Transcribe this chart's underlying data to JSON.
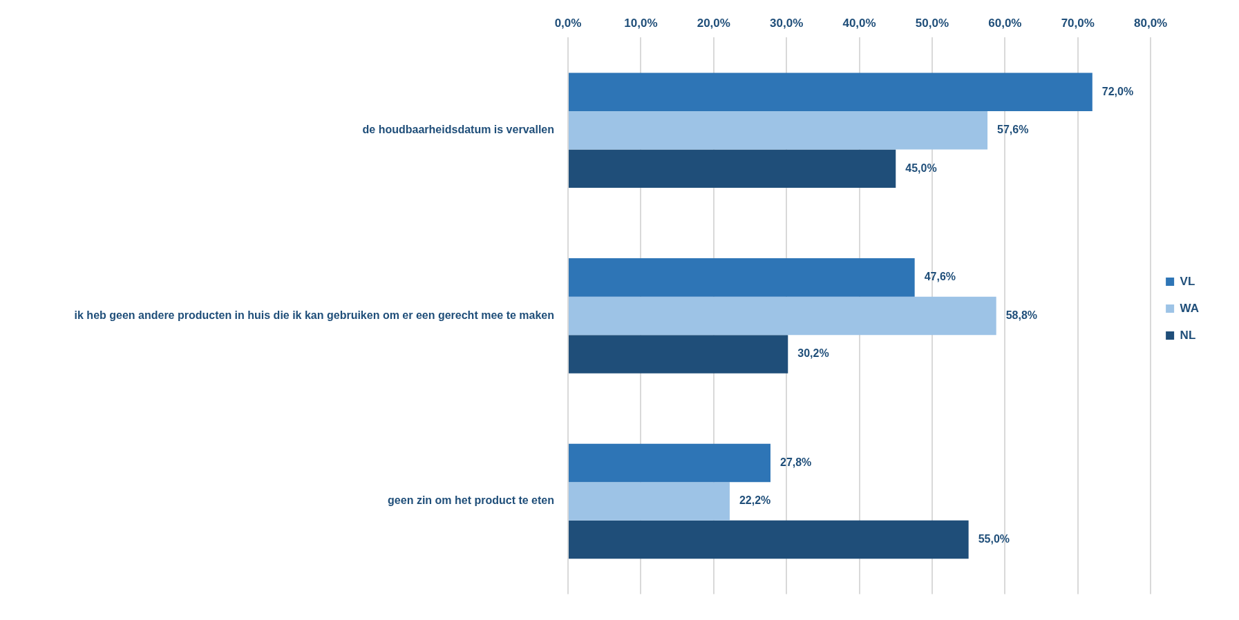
{
  "chart_data": {
    "type": "bar",
    "orientation": "horizontal",
    "categories": [
      "de houdbaarheidsdatum is vervallen",
      "ik heb geen andere producten in huis die ik kan gebruiken om er een gerecht mee te maken",
      "geen zin om het product te eten"
    ],
    "series": [
      {
        "name": "VL",
        "color": "#2e75b6",
        "values": [
          72.0,
          47.6,
          27.8
        ],
        "value_labels": [
          "72,0%",
          "47,6%",
          "27,8%"
        ]
      },
      {
        "name": "WA",
        "color": "#9dc3e6",
        "values": [
          57.6,
          58.8,
          22.2
        ],
        "value_labels": [
          "57,6%",
          "58,8%",
          "22,2%"
        ]
      },
      {
        "name": "NL",
        "color": "#1f4e79",
        "values": [
          45.0,
          30.2,
          55.0
        ],
        "value_labels": [
          "45,0%",
          "30,2%",
          "55,0%"
        ]
      }
    ],
    "xlim": [
      0,
      80
    ],
    "xticks": [
      {
        "value": 0,
        "label": "0,0%"
      },
      {
        "value": 10,
        "label": "10,0%"
      },
      {
        "value": 20,
        "label": "20,0%"
      },
      {
        "value": 30,
        "label": "30,0%"
      },
      {
        "value": 40,
        "label": "40,0%"
      },
      {
        "value": 50,
        "label": "50,0%"
      },
      {
        "value": 60,
        "label": "60,0%"
      },
      {
        "value": 70,
        "label": "70,0%"
      },
      {
        "value": 80,
        "label": "80,0%"
      }
    ],
    "grid": "x",
    "legend": "right"
  }
}
